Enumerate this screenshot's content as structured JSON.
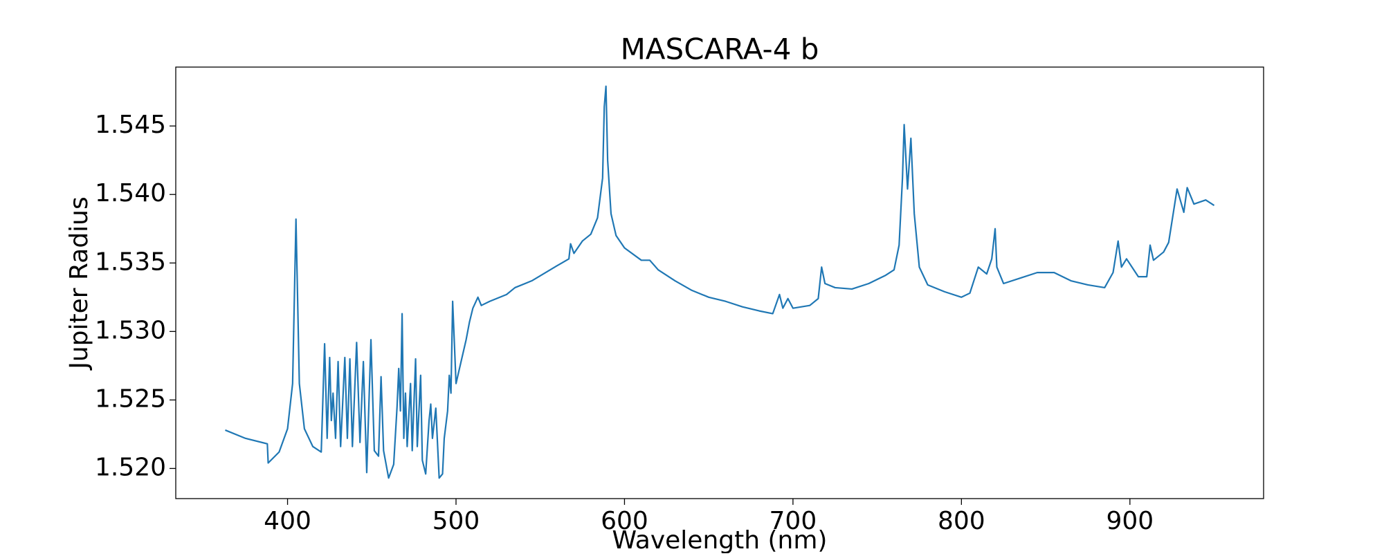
{
  "chart_data": {
    "type": "line",
    "title": "MASCARA-4 b",
    "xlabel": "Wavelength (nm)",
    "ylabel": "Jupiter Radius",
    "color": "#1f77b4",
    "x": [
      363,
      375,
      388,
      388.5,
      395,
      400,
      403,
      405,
      407,
      410,
      415,
      420,
      422,
      423.5,
      425,
      426,
      427,
      428.5,
      430,
      431.5,
      434,
      435.5,
      437,
      438.5,
      441,
      443,
      445,
      447,
      449.5,
      451.5,
      454,
      455.5,
      457,
      460,
      463,
      465,
      466,
      467,
      468,
      469,
      470,
      471,
      473,
      474,
      476,
      477,
      479,
      480,
      482,
      484,
      485,
      486,
      488,
      490,
      492,
      493,
      495,
      496,
      497,
      498,
      500,
      503,
      506,
      508,
      510,
      513,
      515,
      520,
      530,
      535,
      545,
      560,
      567,
      568,
      570,
      575,
      580,
      584,
      587,
      588,
      589,
      590,
      592,
      595,
      600,
      610,
      615,
      620,
      630,
      640,
      650,
      660,
      670,
      680,
      688,
      692,
      694,
      697,
      700,
      710,
      715,
      717,
      719,
      725,
      735,
      745,
      755,
      760,
      763,
      765,
      766,
      768,
      770,
      772,
      775,
      780,
      790,
      800,
      805,
      810,
      815,
      818,
      820,
      821,
      825,
      835,
      845,
      855,
      865,
      875,
      885,
      890,
      893,
      895,
      898,
      905,
      910,
      912,
      914,
      920,
      923,
      928,
      932,
      934,
      938,
      945,
      950
    ],
    "values": [
      1.5228,
      1.5222,
      1.5218,
      1.5204,
      1.5212,
      1.5229,
      1.5262,
      1.5382,
      1.5262,
      1.5229,
      1.5216,
      1.5212,
      1.5291,
      1.5222,
      1.5281,
      1.5235,
      1.5255,
      1.5222,
      1.5278,
      1.5216,
      1.5281,
      1.5222,
      1.528,
      1.5216,
      1.5292,
      1.5219,
      1.5278,
      1.5197,
      1.5294,
      1.5213,
      1.5209,
      1.5267,
      1.5213,
      1.5193,
      1.5203,
      1.5245,
      1.5273,
      1.5242,
      1.5313,
      1.5222,
      1.5255,
      1.5216,
      1.5262,
      1.5213,
      1.528,
      1.5216,
      1.5268,
      1.5206,
      1.5196,
      1.5235,
      1.5247,
      1.5222,
      1.5244,
      1.5193,
      1.5196,
      1.5222,
      1.5242,
      1.5268,
      1.5255,
      1.5322,
      1.5262,
      1.5278,
      1.5294,
      1.5307,
      1.5317,
      1.5325,
      1.5319,
      1.5322,
      1.5327,
      1.5332,
      1.5337,
      1.5348,
      1.5353,
      1.5364,
      1.5357,
      1.5366,
      1.5371,
      1.5383,
      1.5412,
      1.5464,
      1.5479,
      1.5425,
      1.5386,
      1.537,
      1.5361,
      1.5352,
      1.5352,
      1.5345,
      1.5337,
      1.533,
      1.5325,
      1.5322,
      1.5318,
      1.5315,
      1.5313,
      1.5327,
      1.5317,
      1.5324,
      1.5317,
      1.5319,
      1.5324,
      1.5347,
      1.5335,
      1.5332,
      1.5331,
      1.5335,
      1.5341,
      1.5345,
      1.5363,
      1.5412,
      1.5451,
      1.5404,
      1.5441,
      1.5386,
      1.5347,
      1.5334,
      1.5329,
      1.5325,
      1.5328,
      1.5347,
      1.5342,
      1.5353,
      1.5375,
      1.5347,
      1.5335,
      1.5339,
      1.5343,
      1.5343,
      1.5337,
      1.5334,
      1.5332,
      1.5343,
      1.5366,
      1.5347,
      1.5353,
      1.534,
      1.534,
      1.5363,
      1.5352,
      1.5358,
      1.5365,
      1.5404,
      1.5387,
      1.5405,
      1.5393,
      1.5396,
      1.5392
    ],
    "xlim": [
      333.65,
      979.35
    ],
    "ylim": [
      1.5178,
      1.5493
    ],
    "xticks": [
      400,
      500,
      600,
      700,
      800,
      900
    ],
    "yticks": [
      {
        "value": 1.52,
        "label": "1.520"
      },
      1.525,
      {
        "value": 1.53,
        "label": "1.530"
      },
      1.535,
      {
        "value": 1.54,
        "label": "1.540"
      },
      1.545
    ]
  }
}
